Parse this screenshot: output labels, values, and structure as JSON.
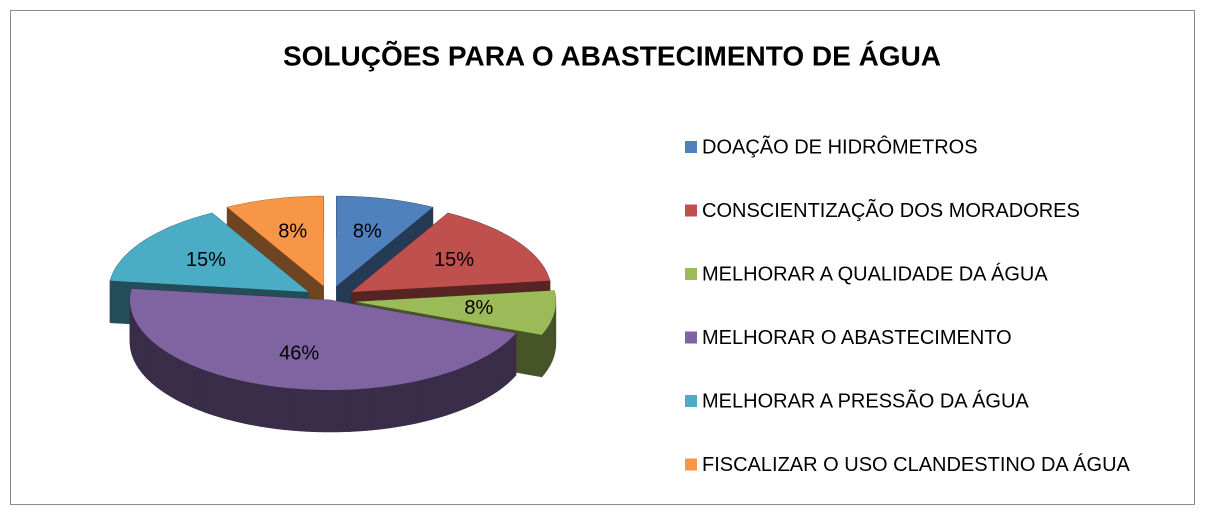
{
  "chart_data": {
    "type": "pie",
    "title": "SOLUÇÕES PARA O ABASTECIMENTO DE ÁGUA",
    "categories": [
      "DOAÇÃO DE HIDRÔMETROS",
      "CONSCIENTIZAÇÃO DOS MORADORES",
      "MELHORAR A QUALIDADE DA ÁGUA",
      "MELHORAR O ABASTECIMENTO",
      "MELHORAR A PRESSÃO DA ÁGUA",
      "FISCALIZAR O USO CLANDESTINO DA ÁGUA"
    ],
    "values": [
      8,
      15,
      8,
      46,
      15,
      8
    ],
    "value_labels": [
      "8%",
      "15%",
      "8%",
      "46%",
      "15%",
      "8%"
    ],
    "colors": [
      "#4f81bd",
      "#c0504d",
      "#9bbb59",
      "#8064a2",
      "#4bacc6",
      "#f79646"
    ],
    "legend": "right"
  }
}
